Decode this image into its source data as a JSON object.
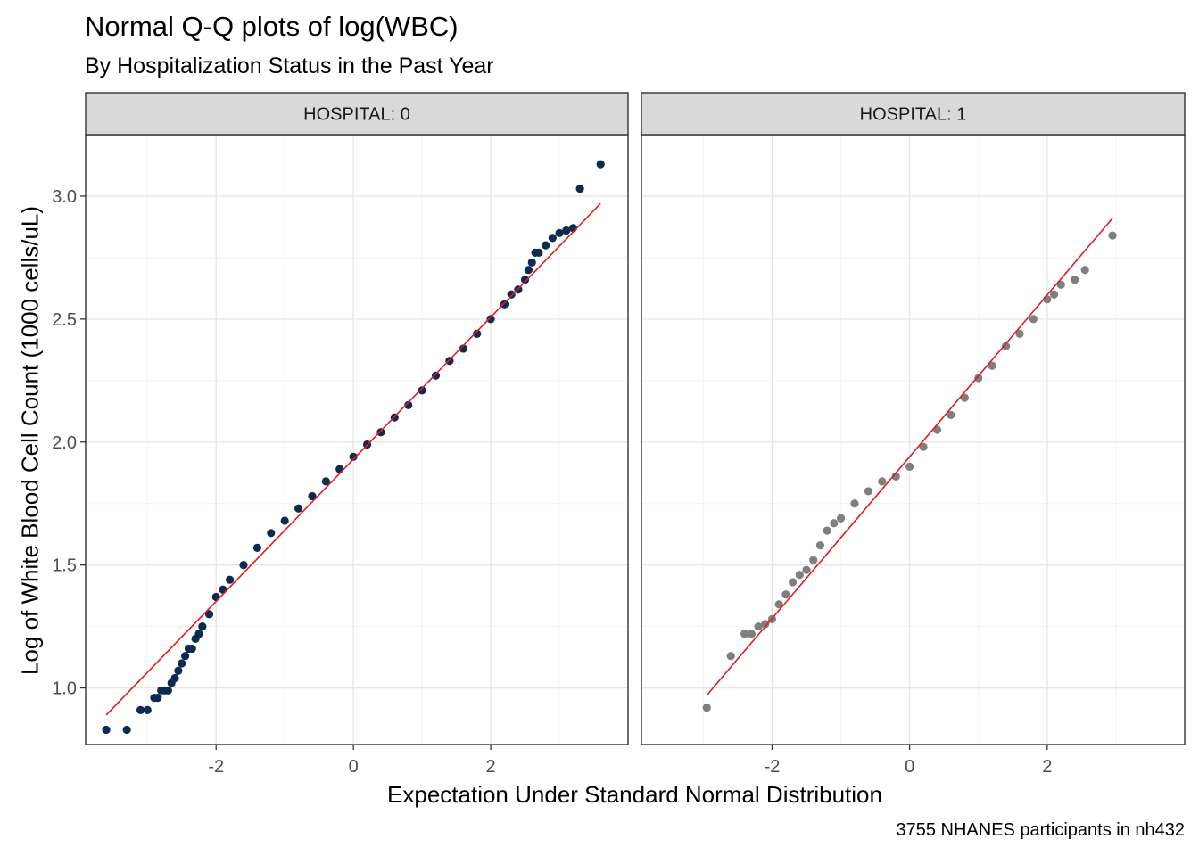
{
  "title": "Normal Q-Q plots of log(WBC)",
  "subtitle": "By Hospitalization Status in the Past Year",
  "caption": "3755 NHANES participants in nh432",
  "chart_data": {
    "type": "scatter",
    "title": "Normal Q-Q plots of log(WBC)",
    "subtitle": "By Hospitalization Status in the Past Year",
    "xlabel": "Expectation Under Standard Normal Distribution",
    "ylabel": "Log of White Blood Cell Count (1000 cells/uL)",
    "xlim": [
      -3.9,
      4.0
    ],
    "ylim": [
      0.77,
      3.25
    ],
    "x_ticks": [
      -2,
      0,
      2
    ],
    "x_tick_labels": [
      "-2",
      "0",
      "2"
    ],
    "y_ticks": [
      1.0,
      1.5,
      2.0,
      2.5,
      3.0
    ],
    "y_tick_labels": [
      "1.0",
      "1.5",
      "2.0",
      "2.5",
      "3.0"
    ],
    "grid": true,
    "panels": [
      {
        "strip_label": "HOSPITAL: 0",
        "point_color": "#0d2a52",
        "line_color": "#e31a1c",
        "reference_line": {
          "x": [
            -3.6,
            3.6
          ],
          "y": [
            0.89,
            2.97
          ]
        },
        "points": {
          "x": [
            -3.6,
            -3.3,
            -3.1,
            -3.0,
            -2.9,
            -2.85,
            -2.8,
            -2.75,
            -2.7,
            -2.65,
            -2.6,
            -2.55,
            -2.5,
            -2.45,
            -2.4,
            -2.35,
            -2.3,
            -2.25,
            -2.2,
            -2.1,
            -2.0,
            -1.9,
            -1.8,
            -1.6,
            -1.4,
            -1.2,
            -1.0,
            -0.8,
            -0.6,
            -0.4,
            -0.2,
            0.0,
            0.2,
            0.4,
            0.6,
            0.8,
            1.0,
            1.2,
            1.4,
            1.6,
            1.8,
            2.0,
            2.2,
            2.3,
            2.4,
            2.5,
            2.55,
            2.6,
            2.65,
            2.7,
            2.8,
            2.9,
            3.0,
            3.1,
            3.2,
            3.3,
            3.6
          ],
          "y": [
            0.83,
            0.83,
            0.91,
            0.91,
            0.96,
            0.96,
            0.99,
            0.99,
            0.99,
            1.02,
            1.04,
            1.07,
            1.1,
            1.13,
            1.16,
            1.16,
            1.2,
            1.22,
            1.25,
            1.3,
            1.37,
            1.4,
            1.44,
            1.5,
            1.57,
            1.63,
            1.68,
            1.73,
            1.78,
            1.84,
            1.89,
            1.94,
            1.99,
            2.04,
            2.1,
            2.15,
            2.21,
            2.27,
            2.33,
            2.38,
            2.44,
            2.5,
            2.56,
            2.6,
            2.62,
            2.66,
            2.7,
            2.73,
            2.77,
            2.77,
            2.8,
            2.83,
            2.85,
            2.86,
            2.87,
            3.03,
            3.13
          ]
        }
      },
      {
        "strip_label": "HOSPITAL: 1",
        "point_color": "#7f7f7f",
        "line_color": "#e31a1c",
        "reference_line": {
          "x": [
            -2.95,
            2.95
          ],
          "y": [
            0.97,
            2.91
          ]
        },
        "points": {
          "x": [
            -2.95,
            -2.6,
            -2.4,
            -2.3,
            -2.2,
            -2.1,
            -2.0,
            -1.9,
            -1.8,
            -1.7,
            -1.6,
            -1.5,
            -1.4,
            -1.3,
            -1.2,
            -1.1,
            -1.0,
            -0.8,
            -0.6,
            -0.4,
            -0.2,
            0.0,
            0.2,
            0.4,
            0.6,
            0.8,
            1.0,
            1.2,
            1.4,
            1.6,
            1.8,
            2.0,
            2.1,
            2.2,
            2.4,
            2.55,
            2.95
          ],
          "y": [
            0.92,
            1.13,
            1.22,
            1.22,
            1.25,
            1.26,
            1.28,
            1.34,
            1.38,
            1.43,
            1.46,
            1.48,
            1.52,
            1.58,
            1.64,
            1.67,
            1.69,
            1.75,
            1.8,
            1.84,
            1.86,
            1.9,
            1.98,
            2.05,
            2.11,
            2.18,
            2.26,
            2.31,
            2.39,
            2.44,
            2.5,
            2.58,
            2.6,
            2.64,
            2.66,
            2.7,
            2.84
          ]
        }
      }
    ]
  }
}
